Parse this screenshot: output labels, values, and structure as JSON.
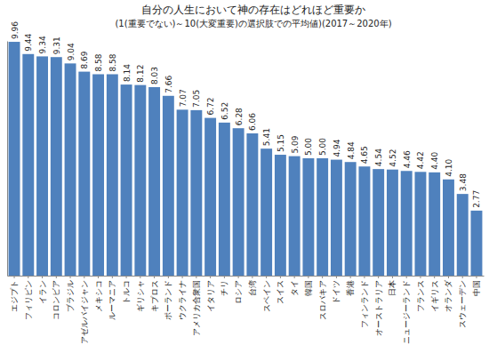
{
  "chart_data": {
    "type": "bar",
    "title": "自分の人生において神の存在はどれほど重要か",
    "subtitle": "(1(重要でない)～10(大変重要)の選択肢での平均値)(2017～2020年)",
    "categories": [
      "エジプト",
      "フィリピン",
      "イラン",
      "コロンビア",
      "ブラジル",
      "アゼルバイジャン",
      "メキシコ",
      "ルーマニア",
      "トルコ",
      "ギリシャ",
      "キプロス",
      "ポーランド",
      "ウクライナ",
      "アメリカ合衆国",
      "イタリア",
      "チリ",
      "ロシア",
      "台湾",
      "スペイン",
      "スイス",
      "タイ",
      "韓国",
      "スロバキア",
      "ドイツ",
      "香港",
      "フィンランド",
      "オーストラリア",
      "日本",
      "ニュージーランド",
      "フランス",
      "イギリス",
      "オランダ",
      "スウェーデン",
      "中国"
    ],
    "values": [
      9.96,
      9.44,
      9.34,
      9.31,
      9.04,
      8.69,
      8.58,
      8.58,
      8.14,
      8.12,
      8.03,
      7.66,
      7.07,
      7.05,
      6.72,
      6.52,
      6.28,
      6.06,
      5.41,
      5.15,
      5.09,
      5.0,
      5.0,
      4.94,
      4.84,
      4.65,
      4.54,
      4.52,
      4.46,
      4.42,
      4.4,
      4.1,
      3.48,
      2.77
    ],
    "value_labels": [
      "9.96",
      "9.44",
      "9.34",
      "9.31",
      "9.04",
      "8.69",
      "8.58",
      "8.58",
      "8.14",
      "8.12",
      "8.03",
      "7.66",
      "7.07",
      "7.05",
      "6.72",
      "6.52",
      "6.28",
      "6.06",
      "5.41",
      "5.15",
      "5.09",
      "5.00",
      "5.00",
      "4.94",
      "4.84",
      "4.65",
      "4.54",
      "4.52",
      "4.46",
      "4.42",
      "4.40",
      "4.10",
      "3.48",
      "2.77"
    ],
    "color": "#4f81bd",
    "ylim": [
      0,
      10
    ],
    "yticks": [],
    "grid": false,
    "data_labels": true,
    "tick_labels": "x"
  }
}
